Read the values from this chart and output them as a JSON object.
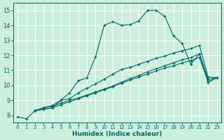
{
  "xlabel": "Humidex (Indice chaleur)",
  "bg_color": "#cceedd",
  "grid_color": "#ffffff",
  "line_color": "#006666",
  "xlim": [
    -0.5,
    23.5
  ],
  "ylim": [
    7.5,
    15.5
  ],
  "xticks": [
    0,
    1,
    2,
    3,
    4,
    5,
    6,
    7,
    8,
    9,
    10,
    11,
    12,
    13,
    14,
    15,
    16,
    17,
    18,
    19,
    20,
    21,
    22,
    23
  ],
  "yticks": [
    8,
    9,
    10,
    11,
    12,
    13,
    14,
    15
  ],
  "curve1_x": [
    0,
    1,
    2,
    3,
    4,
    5,
    6,
    7,
    8,
    9,
    10,
    11,
    12,
    13,
    14,
    15,
    16,
    17,
    18,
    19,
    20,
    21,
    22,
    23
  ],
  "curve1_y": [
    7.9,
    7.75,
    8.3,
    8.4,
    8.5,
    9.0,
    9.5,
    10.3,
    10.5,
    11.9,
    14.0,
    14.25,
    14.0,
    14.05,
    14.3,
    15.0,
    15.0,
    14.6,
    13.3,
    12.8,
    11.4,
    12.1,
    10.2,
    10.5
  ],
  "curve2_x": [
    2,
    3,
    4,
    5,
    6,
    7,
    8,
    9,
    10,
    11,
    12,
    13,
    14,
    15,
    16,
    17,
    18,
    19,
    20,
    21,
    22,
    23
  ],
  "curve2_y": [
    8.3,
    8.4,
    8.5,
    8.7,
    8.9,
    9.1,
    9.3,
    9.5,
    9.7,
    9.9,
    10.15,
    10.35,
    10.55,
    10.75,
    10.95,
    11.15,
    11.3,
    11.5,
    11.65,
    11.85,
    10.25,
    10.5
  ],
  "curve3_x": [
    2,
    3,
    4,
    5,
    6,
    7,
    8,
    9,
    10,
    11,
    12,
    13,
    14,
    15,
    16,
    17,
    18,
    19,
    20,
    21,
    22,
    23
  ],
  "curve3_y": [
    8.3,
    8.5,
    8.6,
    8.8,
    9.0,
    9.15,
    9.35,
    9.55,
    9.75,
    9.95,
    10.2,
    10.45,
    10.65,
    10.9,
    11.1,
    11.3,
    11.5,
    11.7,
    11.85,
    12.1,
    10.4,
    10.5
  ],
  "curve4_x": [
    2,
    3,
    4,
    5,
    6,
    7,
    8,
    9,
    10,
    11,
    12,
    13,
    14,
    15,
    16,
    17,
    18,
    19,
    20,
    21,
    22,
    23
  ],
  "curve4_y": [
    8.3,
    8.5,
    8.65,
    9.0,
    9.1,
    9.5,
    9.8,
    10.1,
    10.4,
    10.75,
    11.05,
    11.2,
    11.4,
    11.6,
    11.8,
    11.95,
    12.15,
    12.3,
    12.45,
    12.65,
    10.55,
    10.5
  ]
}
